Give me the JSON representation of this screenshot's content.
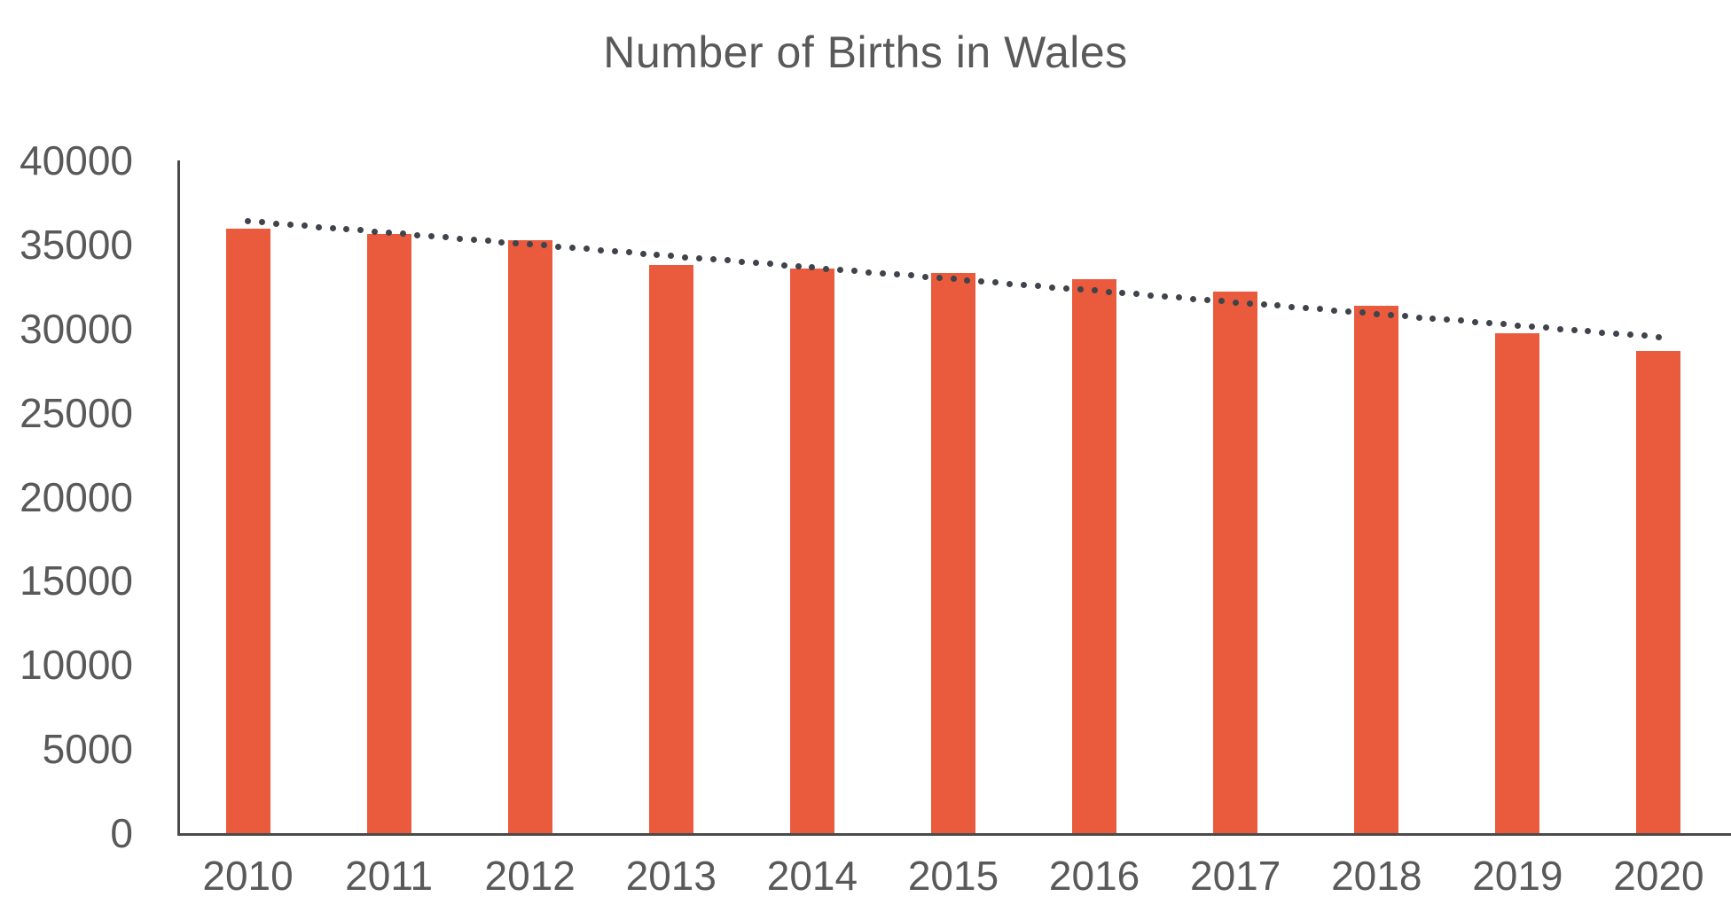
{
  "chart_data": {
    "type": "bar",
    "title": "Number of Births in Wales",
    "categories": [
      "2010",
      "2011",
      "2012",
      "2013",
      "2014",
      "2015",
      "2016",
      "2017",
      "2018",
      "2019",
      "2020"
    ],
    "values": [
      35950,
      35650,
      35250,
      33800,
      33550,
      33300,
      32950,
      32200,
      31350,
      29700,
      28650
    ],
    "series": [
      {
        "name": "Number of births",
        "values": [
          35950,
          35650,
          35250,
          33800,
          33550,
          33300,
          32950,
          32200,
          31350,
          29700,
          28650
        ]
      }
    ],
    "trendline": {
      "type": "linear",
      "style": "dotted",
      "start_value": 36390,
      "end_value": 29500
    },
    "xlabel": "",
    "ylabel": "",
    "ylim": [
      0,
      40000
    ],
    "ytick_step": 5000,
    "yticks": [
      "0",
      "5000",
      "10000",
      "15000",
      "20000",
      "25000",
      "30000",
      "35000",
      "40000"
    ],
    "grid": false,
    "legend": false,
    "colors": {
      "bar": "#EA5A3C",
      "trend_dot": "#3F434A",
      "axis_line": "#4A4A4A",
      "tick_label": "#595959",
      "title": "#595959",
      "background": "#FFFFFF"
    }
  }
}
